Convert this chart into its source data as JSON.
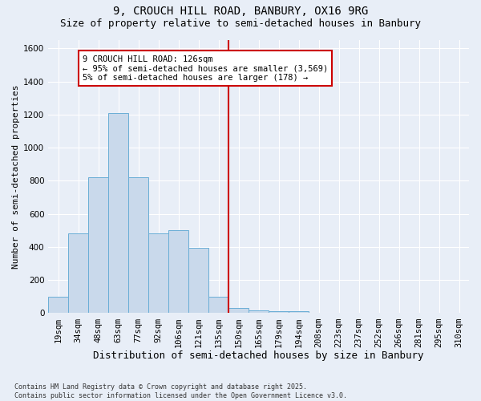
{
  "title1": "9, CROUCH HILL ROAD, BANBURY, OX16 9RG",
  "title2": "Size of property relative to semi-detached houses in Banbury",
  "xlabel": "Distribution of semi-detached houses by size in Banbury",
  "ylabel": "Number of semi-detached properties",
  "footnote": "Contains HM Land Registry data © Crown copyright and database right 2025.\nContains public sector information licensed under the Open Government Licence v3.0.",
  "bin_labels": [
    "19sqm",
    "34sqm",
    "48sqm",
    "63sqm",
    "77sqm",
    "92sqm",
    "106sqm",
    "121sqm",
    "135sqm",
    "150sqm",
    "165sqm",
    "179sqm",
    "194sqm",
    "208sqm",
    "223sqm",
    "237sqm",
    "252sqm",
    "266sqm",
    "281sqm",
    "295sqm",
    "310sqm"
  ],
  "bar_heights": [
    100,
    480,
    820,
    1210,
    820,
    480,
    500,
    395,
    100,
    30,
    15,
    10,
    10,
    0,
    0,
    0,
    0,
    0,
    0,
    0,
    0
  ],
  "bar_color": "#c9d9eb",
  "bar_edge_color": "#6aaed6",
  "vline_color": "#cc0000",
  "vline_x": 8.5,
  "annotation_text": "9 CROUCH HILL ROAD: 126sqm\n← 95% of semi-detached houses are smaller (3,569)\n5% of semi-detached houses are larger (178) →",
  "annotation_box_color": "#cc0000",
  "ylim": [
    0,
    1650
  ],
  "yticks": [
    0,
    200,
    400,
    600,
    800,
    1000,
    1200,
    1400,
    1600
  ],
  "background_color": "#e8eef7",
  "grid_color": "#ffffff",
  "title_fontsize": 10,
  "subtitle_fontsize": 9,
  "tick_fontsize": 7.5,
  "annot_fontsize": 7.5,
  "ylabel_fontsize": 8,
  "xlabel_fontsize": 9
}
